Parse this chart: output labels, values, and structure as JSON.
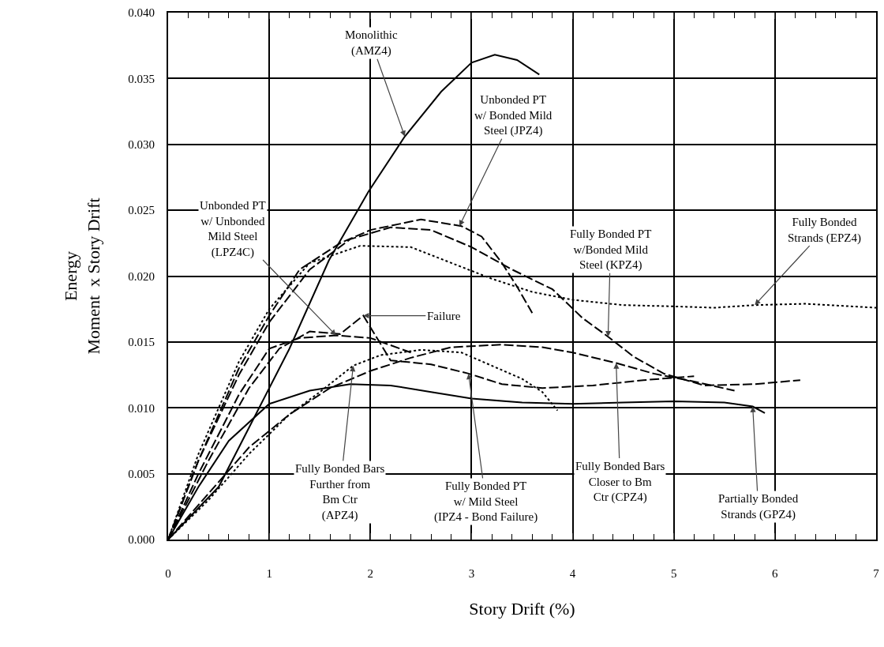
{
  "chart_data": {
    "type": "line",
    "xlabel": "Story Drift (%)",
    "ylabel": "Energy\nMoment  x Story Drift",
    "xlim": [
      0,
      7
    ],
    "xticks": [
      0,
      1,
      2,
      3,
      4,
      5,
      6,
      7
    ],
    "ylim": [
      0,
      0.04
    ],
    "yticks": [
      {
        "value": 0,
        "label": "0.000"
      },
      {
        "value": 0.005,
        "label": "0.005"
      },
      {
        "value": 0.01,
        "label": "0.010"
      },
      {
        "value": 0.015,
        "label": "0.015"
      },
      {
        "value": 0.02,
        "label": "0.020"
      },
      {
        "value": 0.025,
        "label": "0.025"
      },
      {
        "value": 0.03,
        "label": "0.030"
      },
      {
        "value": 0.035,
        "label": "0.035"
      },
      {
        "value": 0.04,
        "label": "0.040"
      }
    ],
    "grid": true,
    "marker": "none",
    "series": [
      {
        "color": "#000000",
        "line_style": "solid",
        "x": [
          0,
          0.5,
          0.9,
          1.2,
          1.59,
          1.98,
          2.34,
          2.7,
          3.0,
          3.23,
          3.45,
          3.67
        ],
        "values": [
          0,
          0.004,
          0.01,
          0.0145,
          0.0212,
          0.0264,
          0.0306,
          0.034,
          0.0362,
          0.0368,
          0.0364,
          0.0353
        ]
      },
      {
        "color": "#000000",
        "line_style": "dashed",
        "x": [
          0,
          0.3,
          0.7,
          1.0,
          1.3,
          1.7,
          2.0,
          2.5,
          2.9,
          3.1,
          3.3,
          3.45,
          3.6
        ],
        "values": [
          0,
          0.006,
          0.013,
          0.017,
          0.0205,
          0.0225,
          0.0235,
          0.0243,
          0.0238,
          0.023,
          0.021,
          0.0192,
          0.0172
        ]
      },
      {
        "color": "#000000",
        "line_style": "dashed",
        "x": [
          0,
          0.3,
          0.7,
          1.0,
          1.3,
          1.66,
          2.0,
          2.4
        ],
        "values": [
          0,
          0.005,
          0.011,
          0.0145,
          0.0153,
          0.0155,
          0.0153,
          0.0142
        ]
      },
      {
        "color": "#000000",
        "line_style": "dashed",
        "x": [
          0,
          0.3,
          0.7,
          1.0,
          1.4,
          1.8,
          2.2,
          2.6,
          3.0,
          3.4,
          3.8,
          4.1,
          4.35,
          4.6,
          4.9,
          5.3,
          5.8,
          6.25
        ],
        "values": [
          0,
          0.006,
          0.0125,
          0.0165,
          0.0205,
          0.0228,
          0.0237,
          0.0235,
          0.0222,
          0.0205,
          0.019,
          0.0168,
          0.0154,
          0.0139,
          0.0126,
          0.0117,
          0.0118,
          0.0121
        ]
      },
      {
        "color": "#000000",
        "line_style": "dotted",
        "x": [
          0,
          0.3,
          0.7,
          1.0,
          1.4,
          1.9,
          2.4,
          2.8,
          3.2,
          3.6,
          4.0,
          4.5,
          5.0,
          5.4,
          5.8,
          6.3,
          7.0
        ],
        "values": [
          0,
          0.0065,
          0.0135,
          0.0175,
          0.021,
          0.0223,
          0.0222,
          0.021,
          0.0198,
          0.0188,
          0.0182,
          0.0178,
          0.0177,
          0.0176,
          0.0178,
          0.0179,
          0.0176
        ]
      },
      {
        "color": "#000000",
        "line_style": "dotted",
        "x": [
          0,
          0.4,
          0.8,
          1.2,
          1.5,
          1.83,
          2.1,
          2.5,
          2.9,
          3.2,
          3.5,
          3.7,
          3.85
        ],
        "values": [
          0,
          0.003,
          0.0065,
          0.0095,
          0.0112,
          0.0132,
          0.014,
          0.0144,
          0.0142,
          0.0132,
          0.0122,
          0.0112,
          0.0098
        ]
      },
      {
        "color": "#000000",
        "line_style": "dashed",
        "x": [
          0,
          0.4,
          0.8,
          1.1,
          1.4,
          1.7,
          1.93,
          2.2,
          2.6,
          2.97,
          3.3,
          3.7,
          4.2,
          4.7,
          5.2
        ],
        "values": [
          0,
          0.006,
          0.0115,
          0.0145,
          0.0158,
          0.0156,
          0.017,
          0.0136,
          0.0133,
          0.0126,
          0.0118,
          0.0115,
          0.0117,
          0.0121,
          0.0124
        ]
      },
      {
        "color": "#000000",
        "line_style": "dashed",
        "x": [
          0,
          0.4,
          0.8,
          1.2,
          1.6,
          2.0,
          2.4,
          2.8,
          3.3,
          3.7,
          4.0,
          4.43,
          4.8,
          5.2,
          5.6
        ],
        "values": [
          0,
          0.0035,
          0.007,
          0.0095,
          0.0115,
          0.0128,
          0.0138,
          0.0146,
          0.0148,
          0.0146,
          0.0142,
          0.0134,
          0.0126,
          0.012,
          0.0113
        ]
      },
      {
        "color": "#000000",
        "line_style": "solid",
        "x": [
          0,
          0.3,
          0.6,
          1.0,
          1.4,
          1.8,
          2.2,
          2.6,
          3.0,
          3.5,
          4.0,
          4.5,
          5.0,
          5.5,
          5.78,
          5.9
        ],
        "values": [
          0,
          0.004,
          0.0075,
          0.0103,
          0.0113,
          0.0118,
          0.0117,
          0.0112,
          0.0107,
          0.0104,
          0.0103,
          0.0104,
          0.0105,
          0.0104,
          0.0101,
          0.0096
        ]
      }
    ],
    "annotations": [
      {
        "text": "Monolithic\n(AMZ4)",
        "x": 2.34,
        "y": 0.0306
      },
      {
        "text": "Unbonded PT\nw/ Bonded Mild\nSteel (JPZ4)",
        "x": 2.88,
        "y": 0.0238
      },
      {
        "text": "Unbonded PT\nw/ Unbonded\nMild Steel\n(LPZ4C)",
        "x": 1.66,
        "y": 0.0155
      },
      {
        "text": "Fully Bonded PT\nw/Bonded Mild\nSteel (KPZ4)",
        "x": 4.35,
        "y": 0.0154
      },
      {
        "text": "Fully Bonded\nStrands (EPZ4)",
        "x": 5.8,
        "y": 0.0178
      },
      {
        "text": "Failure",
        "x": 1.93,
        "y": 0.017
      },
      {
        "text": "Fully Bonded Bars\nFurther from\nBm Ctr\n(APZ4)",
        "x": 1.83,
        "y": 0.0132
      },
      {
        "text": "Fully Bonded PT\nw/ Mild Steel\n(IPZ4 - Bond Failure)",
        "x": 2.97,
        "y": 0.0126
      },
      {
        "text": "Fully Bonded Bars\nCloser to Bm\nCtr (CPZ4)",
        "x": 4.43,
        "y": 0.0134
      },
      {
        "text": "Partially Bonded\nStrands (GPZ4)",
        "x": 5.78,
        "y": 0.0101
      }
    ]
  }
}
